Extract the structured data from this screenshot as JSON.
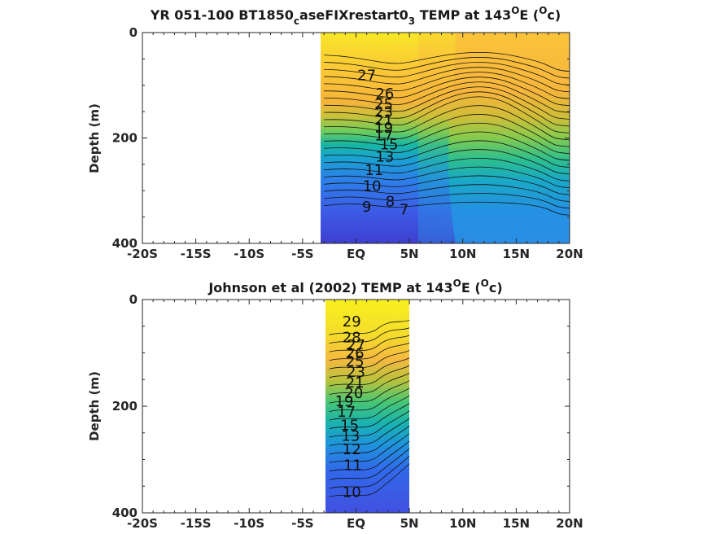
{
  "chart_data": [
    {
      "type": "heatmap",
      "title_main": "YR 051-100 BT1850",
      "title_sub1": "c",
      "title_mid": "aseFIXrestart0",
      "title_sub2": "3",
      "title_tail": " TEMP at 143",
      "title_sup1": "O",
      "title_mid2": "E (",
      "title_sup2": "O",
      "title_end": "c)",
      "ylabel": "Depth (m)",
      "xlabel": "",
      "xticks": [
        "-20S",
        "-15S",
        "-10S",
        "-5S",
        "EQ",
        "5N",
        "10N",
        "15N",
        "20N"
      ],
      "xtick_values": [
        -20,
        -15,
        -10,
        -5,
        0,
        5,
        10,
        15,
        20
      ],
      "yticks": [
        "0",
        "200",
        "400"
      ],
      "ytick_values": [
        0,
        200,
        400
      ],
      "xlim": [
        -20,
        20
      ],
      "ylim": [
        400,
        0
      ],
      "data_xrange": [
        -3,
        20
      ],
      "contour_labels": [
        {
          "text": "27",
          "lat": 1.0,
          "depth": 90
        },
        {
          "text": "26",
          "lat": 2.7,
          "depth": 125
        },
        {
          "text": "25",
          "lat": 2.6,
          "depth": 145
        },
        {
          "text": "23",
          "lat": 2.6,
          "depth": 160
        },
        {
          "text": "21",
          "lat": 2.6,
          "depth": 175
        },
        {
          "text": "19",
          "lat": 2.6,
          "depth": 190
        },
        {
          "text": "17",
          "lat": 2.6,
          "depth": 205
        },
        {
          "text": "15",
          "lat": 3.1,
          "depth": 222
        },
        {
          "text": "13",
          "lat": 2.7,
          "depth": 245
        },
        {
          "text": "11",
          "lat": 1.7,
          "depth": 270
        },
        {
          "text": "10",
          "lat": 1.5,
          "depth": 300
        },
        {
          "text": "9",
          "lat": 1.0,
          "depth": 340
        },
        {
          "text": "8",
          "lat": 3.2,
          "depth": 330
        },
        {
          "text": "7",
          "lat": 4.5,
          "depth": 345
        }
      ]
    },
    {
      "type": "heatmap",
      "title_main": "Johnson et al (2002) TEMP at 143",
      "title_sup1": "O",
      "title_mid2": "E (",
      "title_sup2": "O",
      "title_end": "c)",
      "ylabel": "Depth (m)",
      "xlabel": "",
      "xticks": [
        "-20S",
        "-15S",
        "-10S",
        "-5S",
        "EQ",
        "5N",
        "10N",
        "15N",
        "20N"
      ],
      "xtick_values": [
        -20,
        -15,
        -10,
        -5,
        0,
        5,
        10,
        15,
        20
      ],
      "yticks": [
        "0",
        "200",
        "400"
      ],
      "ytick_values": [
        0,
        200,
        400
      ],
      "xlim": [
        -20,
        20
      ],
      "ylim": [
        400,
        0
      ],
      "data_xrange": [
        -2.5,
        5
      ],
      "contour_labels": [
        {
          "text": "29",
          "lat": -0.4,
          "depth": 50
        },
        {
          "text": "28",
          "lat": -0.4,
          "depth": 80
        },
        {
          "text": "27",
          "lat": 0.0,
          "depth": 95
        },
        {
          "text": "26",
          "lat": -0.1,
          "depth": 110
        },
        {
          "text": "25",
          "lat": -0.1,
          "depth": 125
        },
        {
          "text": "23",
          "lat": 0.0,
          "depth": 145
        },
        {
          "text": "21",
          "lat": -0.1,
          "depth": 165
        },
        {
          "text": "20",
          "lat": -0.2,
          "depth": 185
        },
        {
          "text": "19",
          "lat": -1.1,
          "depth": 200
        },
        {
          "text": "17",
          "lat": -0.9,
          "depth": 220
        },
        {
          "text": "15",
          "lat": -0.6,
          "depth": 245
        },
        {
          "text": "13",
          "lat": -0.5,
          "depth": 265
        },
        {
          "text": "12",
          "lat": -0.4,
          "depth": 290
        },
        {
          "text": "11",
          "lat": -0.3,
          "depth": 320
        },
        {
          "text": "10",
          "lat": -0.4,
          "depth": 370
        }
      ]
    }
  ]
}
